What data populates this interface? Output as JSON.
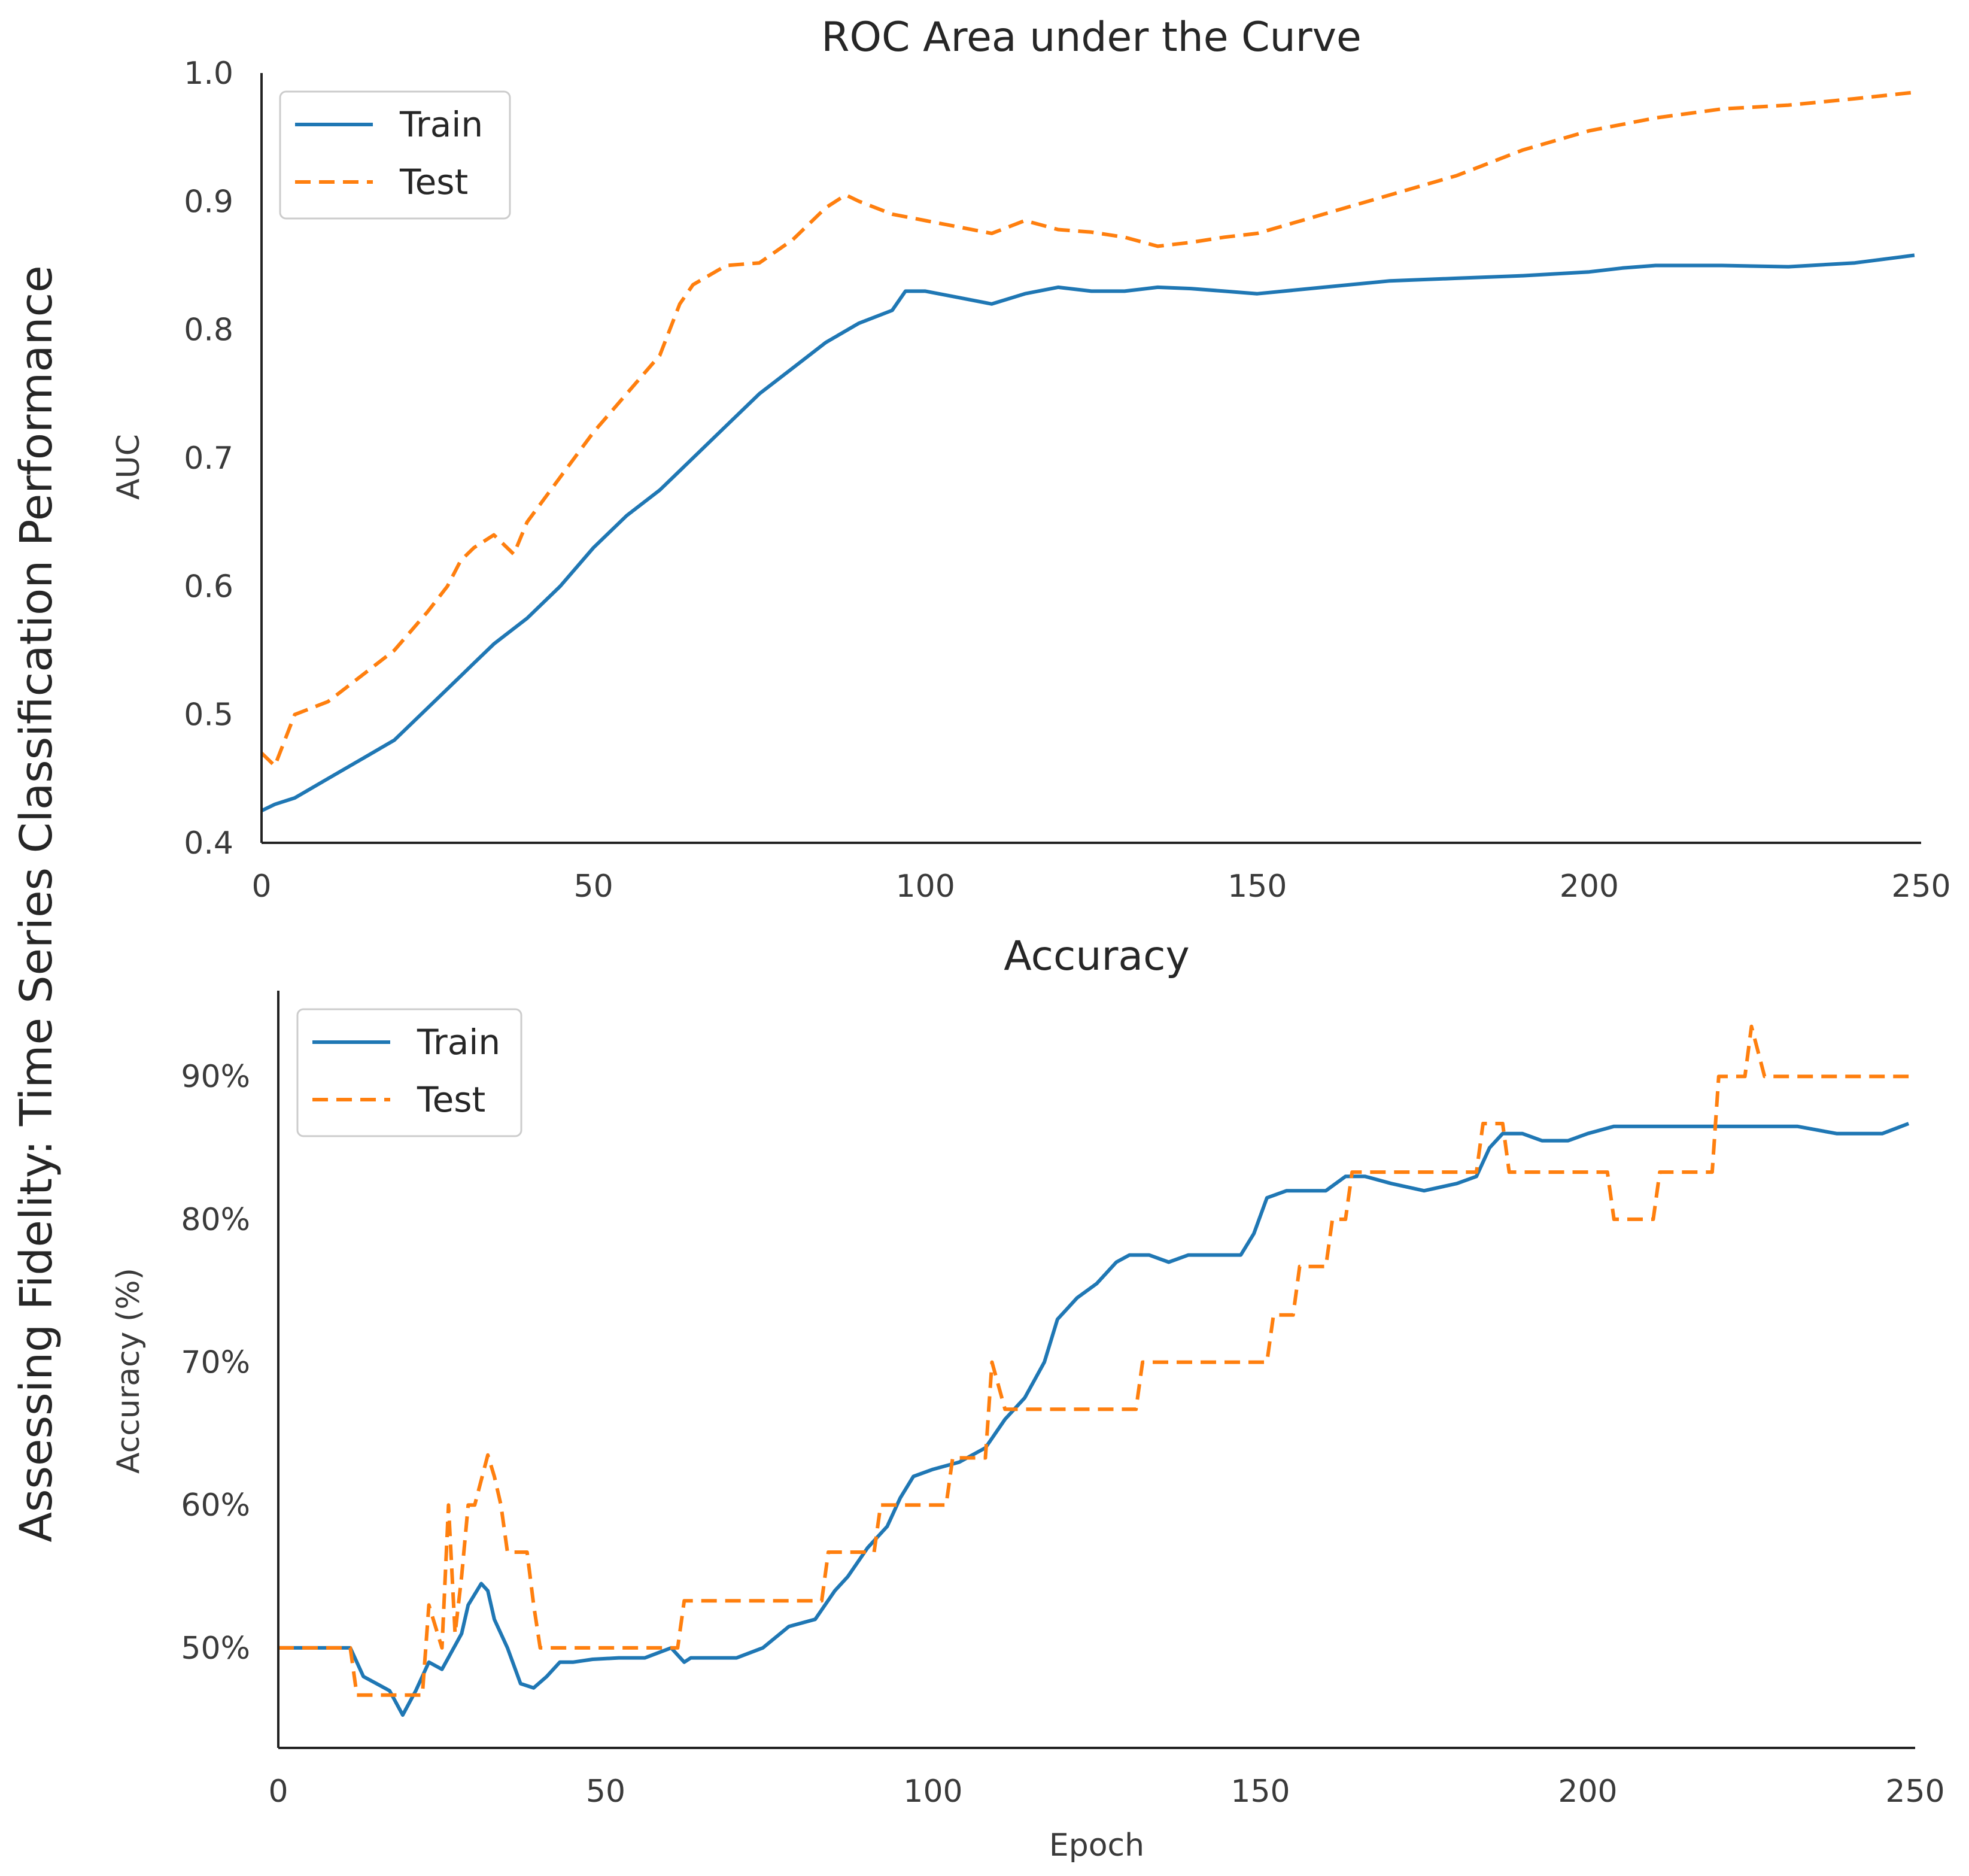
{
  "figure": {
    "suptitle": "Assessing Fidelity: Time Series Classification Performance"
  },
  "colors": {
    "train": "#1f77b4",
    "test": "#ff7f0e",
    "axis": "#222222",
    "text": "#333333"
  },
  "chart_data": [
    {
      "type": "line",
      "title": "ROC Area under the Curve",
      "xlabel": "",
      "ylabel": "AUC",
      "xlim": [
        0,
        250
      ],
      "ylim": [
        0.4,
        1.0
      ],
      "xticks": [
        0,
        50,
        100,
        150,
        200,
        250
      ],
      "xtick_labels": [
        "0",
        "50",
        "100",
        "150",
        "200",
        "250"
      ],
      "yticks": [
        0.4,
        0.5,
        0.6,
        0.7,
        0.8,
        0.9,
        1.0
      ],
      "ytick_labels": [
        "0.4",
        "0.5",
        "0.6",
        "0.7",
        "0.8",
        "0.9",
        "1.0"
      ],
      "legend": {
        "position": "top-left",
        "entries": [
          "Train",
          "Test"
        ]
      },
      "series": [
        {
          "name": "Train",
          "style": "solid",
          "x": [
            0,
            2,
            5,
            10,
            15,
            20,
            25,
            30,
            32,
            35,
            40,
            45,
            50,
            55,
            60,
            65,
            70,
            75,
            80,
            85,
            90,
            95,
            97,
            100,
            105,
            110,
            115,
            120,
            125,
            130,
            135,
            140,
            145,
            150,
            160,
            170,
            180,
            190,
            200,
            205,
            210,
            220,
            230,
            240,
            249
          ],
          "y": [
            0.425,
            0.43,
            0.435,
            0.45,
            0.465,
            0.48,
            0.505,
            0.53,
            0.54,
            0.555,
            0.575,
            0.6,
            0.63,
            0.655,
            0.675,
            0.7,
            0.725,
            0.75,
            0.77,
            0.79,
            0.805,
            0.815,
            0.83,
            0.83,
            0.825,
            0.82,
            0.828,
            0.833,
            0.83,
            0.83,
            0.833,
            0.832,
            0.83,
            0.828,
            0.833,
            0.838,
            0.84,
            0.842,
            0.845,
            0.848,
            0.85,
            0.85,
            0.849,
            0.852,
            0.858
          ]
        },
        {
          "name": "Test",
          "style": "dashed",
          "x": [
            0,
            2,
            5,
            10,
            15,
            20,
            25,
            28,
            30,
            32,
            35,
            38,
            40,
            45,
            50,
            55,
            60,
            63,
            65,
            70,
            75,
            80,
            85,
            88,
            90,
            95,
            100,
            105,
            110,
            115,
            120,
            125,
            130,
            135,
            140,
            145,
            150,
            160,
            170,
            180,
            190,
            200,
            210,
            220,
            230,
            240,
            249
          ],
          "y": [
            0.47,
            0.46,
            0.5,
            0.51,
            0.53,
            0.55,
            0.58,
            0.6,
            0.62,
            0.63,
            0.64,
            0.625,
            0.65,
            0.685,
            0.72,
            0.75,
            0.78,
            0.82,
            0.835,
            0.85,
            0.852,
            0.87,
            0.895,
            0.905,
            0.9,
            0.89,
            0.885,
            0.88,
            0.875,
            0.885,
            0.878,
            0.876,
            0.872,
            0.865,
            0.868,
            0.872,
            0.875,
            0.89,
            0.905,
            0.92,
            0.94,
            0.955,
            0.965,
            0.972,
            0.975,
            0.98,
            0.985
          ]
        }
      ]
    },
    {
      "type": "line",
      "title": "Accuracy",
      "xlabel": "Epoch",
      "ylabel": "Accuracy (%)",
      "xlim": [
        0,
        250
      ],
      "ylim": [
        43,
        96
      ],
      "xticks": [
        0,
        50,
        100,
        150,
        200,
        250
      ],
      "xtick_labels": [
        "0",
        "50",
        "100",
        "150",
        "200",
        "250"
      ],
      "yticks": [
        50,
        60,
        70,
        80,
        90
      ],
      "ytick_labels": [
        "50%",
        "60%",
        "70%",
        "80%",
        "90%"
      ],
      "legend": {
        "position": "top-left",
        "entries": [
          "Train",
          "Test"
        ]
      },
      "series": [
        {
          "name": "Train",
          "style": "solid",
          "x": [
            0,
            11,
            13,
            17,
            19,
            21,
            23,
            25,
            28,
            29,
            31,
            32,
            33,
            35,
            37,
            39,
            41,
            43,
            45,
            48,
            52,
            56,
            60,
            62,
            63,
            66,
            70,
            74,
            78,
            82,
            85,
            87,
            90,
            93,
            95,
            97,
            100,
            104,
            108,
            111,
            114,
            117,
            119,
            122,
            125,
            128,
            130,
            133,
            136,
            139,
            143,
            147,
            149,
            151,
            154,
            157,
            160,
            163,
            166,
            170,
            175,
            180,
            183,
            185,
            187,
            190,
            193,
            197,
            200,
            204,
            207,
            211,
            215,
            220,
            225,
            228,
            232,
            238,
            245,
            249
          ],
          "y": [
            50,
            50,
            48,
            47,
            45.3,
            47,
            49,
            48.5,
            51,
            53,
            54.5,
            54,
            52,
            50,
            47.5,
            47.2,
            48,
            49,
            49,
            49.2,
            49.3,
            49.3,
            50,
            49,
            49.3,
            49.3,
            49.3,
            50,
            51.5,
            52,
            54,
            55,
            57,
            58.5,
            60.5,
            62,
            62.5,
            63,
            64,
            66,
            67.5,
            70,
            73,
            74.5,
            75.5,
            77,
            77.5,
            77.5,
            77,
            77.5,
            77.5,
            77.5,
            79,
            81.5,
            82,
            82,
            82,
            83,
            83,
            82.5,
            82,
            82.5,
            83,
            85,
            86,
            86,
            85.5,
            85.5,
            86,
            86.5,
            86.5,
            86.5,
            86.5,
            86.5,
            86.5,
            86.5,
            86.5,
            86,
            86,
            86.7
          ]
        },
        {
          "name": "Test",
          "style": "dashed",
          "x": [
            0,
            11,
            12,
            22,
            23,
            25,
            26,
            27,
            28,
            29,
            30,
            32,
            33,
            34,
            35,
            36,
            38,
            39,
            40,
            41,
            50,
            61,
            62,
            83,
            84,
            91,
            92,
            102,
            103,
            108,
            109,
            111,
            112,
            113,
            131,
            132,
            151,
            152,
            155,
            156,
            160,
            161,
            163,
            164,
            183,
            184,
            187,
            188,
            203,
            204,
            210,
            211,
            219,
            220,
            224,
            225,
            227,
            228,
            249
          ],
          "y": [
            50,
            50,
            46.7,
            46.7,
            53,
            50,
            60,
            51,
            55,
            60,
            60,
            63.5,
            62,
            60,
            56.7,
            56.7,
            56.7,
            53,
            50,
            50,
            50,
            50,
            53.3,
            53.3,
            56.7,
            56.7,
            60,
            60,
            63.3,
            63.3,
            70,
            66.7,
            66.7,
            66.7,
            66.7,
            70,
            70,
            73.3,
            73.3,
            76.7,
            76.7,
            80,
            80,
            83.3,
            83.3,
            86.7,
            86.7,
            83.3,
            83.3,
            80,
            80,
            83.3,
            83.3,
            90,
            90,
            93.5,
            90,
            90,
            90
          ]
        }
      ]
    }
  ]
}
